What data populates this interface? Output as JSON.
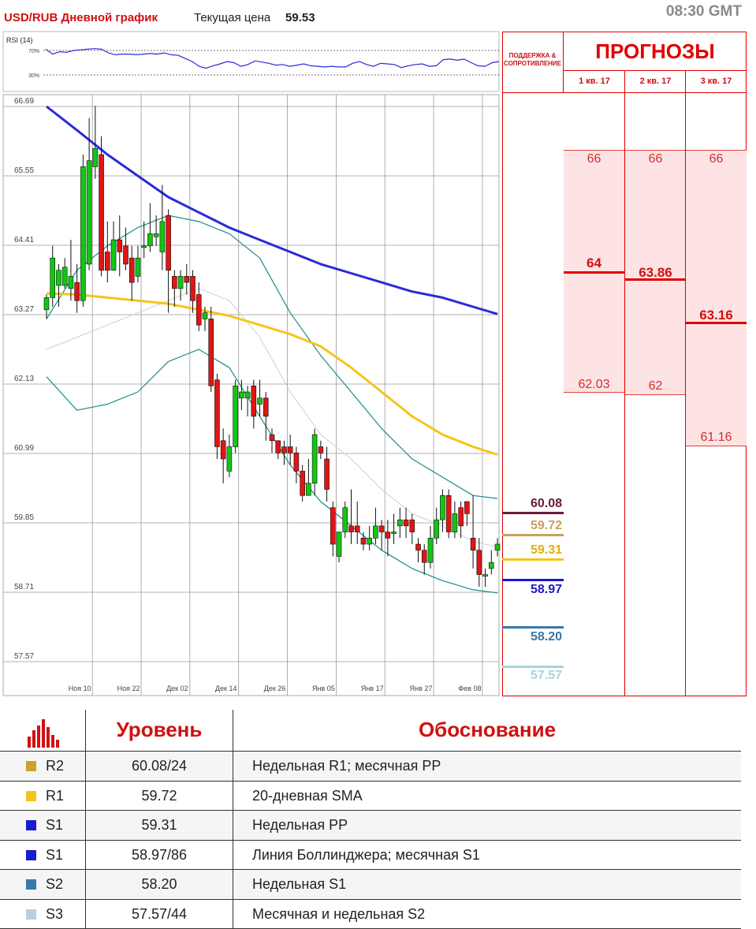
{
  "header": {
    "title": "USD/RUB Дневной график",
    "price_label": "Текущая цена",
    "price_value": "59.53",
    "time": "08:30 GMT"
  },
  "rsi": {
    "label": "RSI (14)",
    "level_high": "70%",
    "level_low": "30%",
    "values": [
      72,
      64,
      68,
      67,
      70,
      71,
      72,
      73,
      72,
      66,
      63,
      64,
      64,
      63,
      64,
      65,
      64,
      66,
      63,
      62,
      57,
      52,
      44,
      41,
      45,
      48,
      52,
      50,
      44,
      47,
      53,
      51,
      49,
      46,
      47,
      44,
      46,
      48,
      45,
      44,
      43,
      44,
      43,
      43,
      49,
      52,
      47,
      44,
      49,
      48,
      47,
      42,
      45,
      47,
      48,
      44,
      45,
      55,
      56,
      54,
      56,
      50,
      45,
      44,
      50,
      52
    ]
  },
  "chart_data": {
    "type": "candlestick",
    "title": "USD/RUB Дневной график",
    "y_ticks": [
      "66.69",
      "65.55",
      "64.41",
      "63.27",
      "62.13",
      "60.99",
      "59.85",
      "58.71",
      "57.57"
    ],
    "ylim": [
      57.57,
      66.69
    ],
    "x_ticks": [
      {
        "label": "Ноя 10",
        "i": 3
      },
      {
        "label": "Ноя 22",
        "i": 11
      },
      {
        "label": "Дек 02",
        "i": 19
      },
      {
        "label": "Дек 14",
        "i": 27
      },
      {
        "label": "Дек 26",
        "i": 35
      },
      {
        "label": "Янв 05",
        "i": 43
      },
      {
        "label": "Янв 17",
        "i": 51
      },
      {
        "label": "Янв 27",
        "i": 59
      },
      {
        "label": "Фев 08",
        "i": 67
      }
    ],
    "candles": [
      [
        63.35,
        63.55,
        63.2,
        63.6
      ],
      [
        63.55,
        64.2,
        63.4,
        64.4
      ],
      [
        63.75,
        64.0,
        63.4,
        64.1
      ],
      [
        63.75,
        64.05,
        63.7,
        64.2
      ],
      [
        63.7,
        63.9,
        63.5,
        64.5
      ],
      [
        63.8,
        63.5,
        63.3,
        64.1
      ],
      [
        63.5,
        65.7,
        63.4,
        65.9
      ],
      [
        64.1,
        65.8,
        64.0,
        66.5
      ],
      [
        65.7,
        66.0,
        65.5,
        66.7
      ],
      [
        65.9,
        64.0,
        63.9,
        66.2
      ],
      [
        64.3,
        64.0,
        63.8,
        64.8
      ],
      [
        64.0,
        64.5,
        64.0,
        64.8
      ],
      [
        64.5,
        64.3,
        63.9,
        64.9
      ],
      [
        64.4,
        64.1,
        64.0,
        64.7
      ],
      [
        64.2,
        63.8,
        63.5,
        64.4
      ],
      [
        63.9,
        64.2,
        63.8,
        64.4
      ],
      [
        64.4,
        64.4,
        64.2,
        64.8
      ],
      [
        64.4,
        64.6,
        64.3,
        65.1
      ],
      [
        64.55,
        64.6,
        64.4,
        64.9
      ],
      [
        64.3,
        64.8,
        64.0,
        65.4
      ],
      [
        64.9,
        64.0,
        63.3,
        65.0
      ],
      [
        63.9,
        63.7,
        63.4,
        64.0
      ],
      [
        63.7,
        63.9,
        63.5,
        64.0
      ],
      [
        63.9,
        63.8,
        63.6,
        64.1
      ],
      [
        63.9,
        63.5,
        63.3,
        64.0
      ],
      [
        63.6,
        63.1,
        63.0,
        63.8
      ],
      [
        63.2,
        63.3,
        63.0,
        63.4
      ],
      [
        63.2,
        62.1,
        62.0,
        63.4
      ],
      [
        62.2,
        61.1,
        60.9,
        62.3
      ],
      [
        61.2,
        60.9,
        60.5,
        61.4
      ],
      [
        60.7,
        61.1,
        60.6,
        61.3
      ],
      [
        61.1,
        62.1,
        61.0,
        62.2
      ],
      [
        61.9,
        62.0,
        61.7,
        62.2
      ],
      [
        61.9,
        62.0,
        61.6,
        62.1
      ],
      [
        62.1,
        61.6,
        61.4,
        62.2
      ],
      [
        61.8,
        61.9,
        61.6,
        62.2
      ],
      [
        61.9,
        61.6,
        61.2,
        62.0
      ],
      [
        61.3,
        61.2,
        61.0,
        61.4
      ],
      [
        61.2,
        61.0,
        60.9,
        61.2
      ],
      [
        61.1,
        61.0,
        60.8,
        61.2
      ],
      [
        61.1,
        61.0,
        60.8,
        61.3
      ],
      [
        61.0,
        60.7,
        60.5,
        61.1
      ],
      [
        60.7,
        60.3,
        60.2,
        60.8
      ],
      [
        60.3,
        60.5,
        60.3,
        60.9
      ],
      [
        60.5,
        61.3,
        60.3,
        61.4
      ],
      [
        61.1,
        61.0,
        60.9,
        61.2
      ],
      [
        60.9,
        60.4,
        60.2,
        61.1
      ],
      [
        60.1,
        59.5,
        59.3,
        60.2
      ],
      [
        59.3,
        59.7,
        59.2,
        59.7
      ],
      [
        59.7,
        60.1,
        59.6,
        60.2
      ],
      [
        59.8,
        59.7,
        59.5,
        60.4
      ],
      [
        59.8,
        59.7,
        59.5,
        60.2
      ],
      [
        59.6,
        59.5,
        59.4,
        59.7
      ],
      [
        59.5,
        59.6,
        59.4,
        59.8
      ],
      [
        59.6,
        59.8,
        59.5,
        60.1
      ],
      [
        59.8,
        59.7,
        59.4,
        59.9
      ],
      [
        59.7,
        59.6,
        59.3,
        59.9
      ],
      [
        59.7,
        59.7,
        59.5,
        60.0
      ],
      [
        59.8,
        59.9,
        59.6,
        60.1
      ],
      [
        59.9,
        59.8,
        59.6,
        60.1
      ],
      [
        59.9,
        59.7,
        59.5,
        60.0
      ],
      [
        59.5,
        59.4,
        59.2,
        59.6
      ],
      [
        59.4,
        59.2,
        59.0,
        59.5
      ],
      [
        59.2,
        59.6,
        59.1,
        59.8
      ],
      [
        59.6,
        59.9,
        59.5,
        60.1
      ],
      [
        59.9,
        60.3,
        59.7,
        60.4
      ],
      [
        60.3,
        59.7,
        59.6,
        60.4
      ],
      [
        59.7,
        60.0,
        59.6,
        60.2
      ],
      [
        60.1,
        59.8,
        59.6,
        60.2
      ],
      [
        60.2,
        60.0,
        59.8,
        60.2
      ],
      [
        59.6,
        59.4,
        59.1,
        60.3
      ],
      [
        59.4,
        59.0,
        58.8,
        59.6
      ],
      [
        59.0,
        59.0,
        58.8,
        59.1
      ],
      [
        59.1,
        59.2,
        59.0,
        59.4
      ],
      [
        59.4,
        59.5,
        59.3,
        59.6
      ]
    ],
    "series": [
      {
        "name": "SMA 200",
        "color": "#2a2ad8",
        "width": 3,
        "values": [
          [
            0,
            66.69
          ],
          [
            5,
            66.3
          ],
          [
            10,
            65.9
          ],
          [
            15,
            65.55
          ],
          [
            20,
            65.2
          ],
          [
            25,
            64.95
          ],
          [
            30,
            64.7
          ],
          [
            35,
            64.5
          ],
          [
            40,
            64.3
          ],
          [
            45,
            64.1
          ],
          [
            50,
            63.95
          ],
          [
            55,
            63.8
          ],
          [
            60,
            63.65
          ],
          [
            65,
            63.55
          ],
          [
            70,
            63.4
          ],
          [
            74,
            63.28
          ]
        ]
      },
      {
        "name": "SMA 100",
        "color": "#f5c41c",
        "width": 3,
        "values": [
          [
            0,
            63.62
          ],
          [
            5,
            63.6
          ],
          [
            10,
            63.55
          ],
          [
            15,
            63.5
          ],
          [
            20,
            63.45
          ],
          [
            25,
            63.35
          ],
          [
            30,
            63.25
          ],
          [
            35,
            63.1
          ],
          [
            40,
            62.95
          ],
          [
            45,
            62.75
          ],
          [
            50,
            62.4
          ],
          [
            55,
            62.0
          ],
          [
            60,
            61.6
          ],
          [
            65,
            61.3
          ],
          [
            70,
            61.1
          ],
          [
            74,
            60.97
          ]
        ]
      },
      {
        "name": "BB upper",
        "color": "#1a8a8a",
        "width": 1.2,
        "values": [
          [
            0,
            63.2
          ],
          [
            5,
            64.0
          ],
          [
            10,
            64.4
          ],
          [
            15,
            64.7
          ],
          [
            20,
            64.9
          ],
          [
            25,
            64.8
          ],
          [
            30,
            64.6
          ],
          [
            35,
            64.2
          ],
          [
            40,
            63.3
          ],
          [
            45,
            62.6
          ],
          [
            50,
            62.0
          ],
          [
            55,
            61.4
          ],
          [
            60,
            60.9
          ],
          [
            65,
            60.6
          ],
          [
            70,
            60.3
          ],
          [
            74,
            60.25
          ]
        ]
      },
      {
        "name": "BB lower",
        "color": "#1a8a8a",
        "width": 1.2,
        "values": [
          [
            0,
            62.25
          ],
          [
            5,
            61.7
          ],
          [
            10,
            61.8
          ],
          [
            15,
            62.0
          ],
          [
            20,
            62.5
          ],
          [
            25,
            62.7
          ],
          [
            30,
            62.4
          ],
          [
            35,
            61.6
          ],
          [
            40,
            60.8
          ],
          [
            45,
            60.2
          ],
          [
            50,
            59.8
          ],
          [
            55,
            59.4
          ],
          [
            60,
            59.1
          ],
          [
            65,
            58.9
          ],
          [
            70,
            58.75
          ],
          [
            74,
            58.7
          ]
        ]
      },
      {
        "name": "BB mid",
        "color": "#cfcfcf",
        "width": 1,
        "values": [
          [
            0,
            62.7
          ],
          [
            5,
            62.9
          ],
          [
            10,
            63.1
          ],
          [
            15,
            63.3
          ],
          [
            20,
            63.5
          ],
          [
            25,
            63.7
          ],
          [
            30,
            63.5
          ],
          [
            35,
            62.9
          ],
          [
            40,
            62.0
          ],
          [
            45,
            61.3
          ],
          [
            50,
            60.9
          ],
          [
            55,
            60.4
          ],
          [
            60,
            60.0
          ],
          [
            65,
            59.8
          ],
          [
            70,
            59.55
          ],
          [
            74,
            59.45
          ]
        ]
      }
    ]
  },
  "forecast": {
    "sr_label_line1": "ПОДДЕРЖКА &",
    "sr_label_line2": "СОПРОТИВЛЕНИЕ",
    "title": "ПРОГНОЗЫ",
    "quarters": [
      "1 кв. 17",
      "2 кв. 17",
      "3 кв. 17"
    ],
    "q1": {
      "high": "66",
      "mid": "64",
      "low": "62.03"
    },
    "q2": {
      "high": "66",
      "mid": "63.86",
      "low": "62"
    },
    "q3": {
      "high": "66",
      "mid": "63.16",
      "low": "61.16"
    }
  },
  "levels": [
    {
      "value": "60.08",
      "color": "#6b1a3a"
    },
    {
      "value": "59.72",
      "color": "#c9a25a"
    },
    {
      "value": "59.31",
      "color": "#f5c41c"
    },
    {
      "value": "58.97",
      "color": "#1a1ad0"
    },
    {
      "value": "58.20",
      "color": "#3a78a8"
    },
    {
      "value": "57.57",
      "color": "#a8d4d8"
    }
  ],
  "table": {
    "col_level": "Уровень",
    "col_reason": "Обоснование",
    "rows": [
      {
        "label": "R2",
        "level": "60.08/24",
        "reason": "Недельная R1; месячная PP",
        "color": "#c9a227"
      },
      {
        "label": "R1",
        "level": "59.72",
        "reason": "20-дневная SMA",
        "color": "#f5c41c"
      },
      {
        "label": "S1",
        "level": "59.31",
        "reason": "Недельная PP",
        "color": "#1a1ad0"
      },
      {
        "label": "S1",
        "level": "58.97/86",
        "reason": "Линия Боллинджера; месячная S1",
        "color": "#1a1ad0"
      },
      {
        "label": "S2",
        "level": "58.20",
        "reason": "Недельная S1",
        "color": "#3a78a8"
      },
      {
        "label": "S3",
        "level": "57.57/44",
        "reason": "Месячная  и недельная S2",
        "color": "#b8d0e0"
      }
    ]
  }
}
